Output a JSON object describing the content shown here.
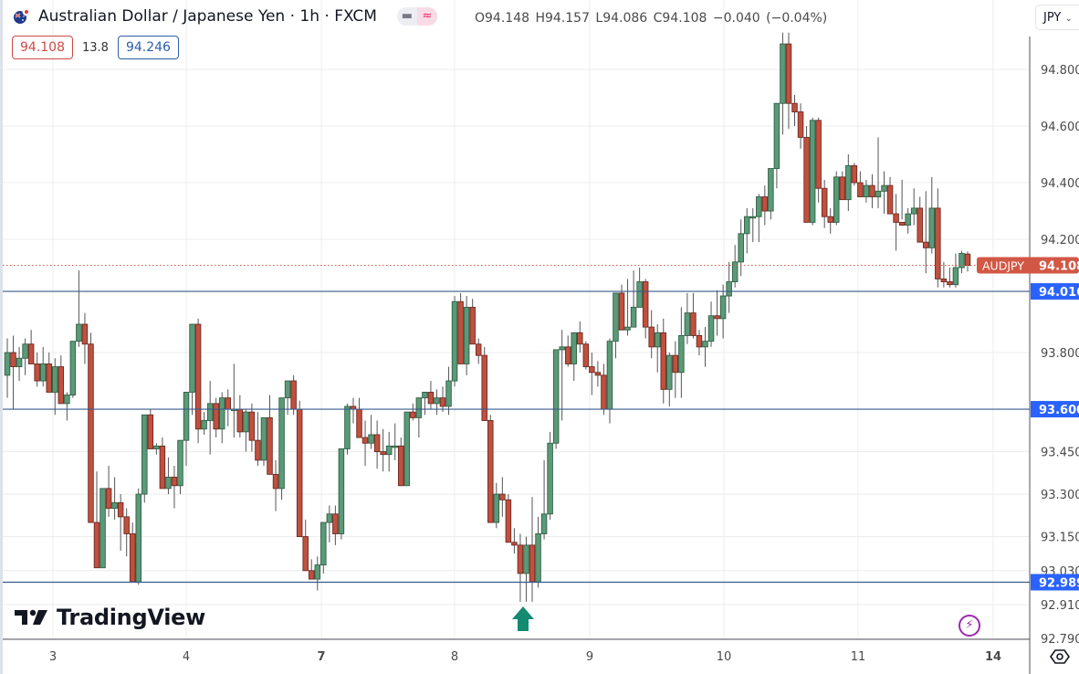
{
  "header": {
    "title": "Australian Dollar / Japanese Yen · 1h · FXCM",
    "ohlc": "O94.148 H94.157 L94.086 C94.108 −0.040 (−0.04%)",
    "sell_price": "94.108",
    "spread": "13.8",
    "buy_price": "94.246",
    "currency_selector": "JPY"
  },
  "watermark": "TradingView",
  "colors": {
    "up": "#5b9a78",
    "up_border": "#2f5f44",
    "down": "#c0503f",
    "down_border": "#6e2a22",
    "hline": "#3a5a8c",
    "price_tag": "#d25745",
    "level_tag": "#2962ff",
    "arrow": "#148a70",
    "grid": "#ececec"
  },
  "chart_data": {
    "type": "candlestick",
    "title": "Australian Dollar / Japanese Yen · 1h · FXCM",
    "symbol": "AUDJPY",
    "interval": "1h",
    "xlabel": "",
    "ylabel": "JPY",
    "x_tick_labels": [
      "3",
      "4",
      "7",
      "8",
      "9",
      "10",
      "11",
      "14"
    ],
    "y_tick_labels": [
      "94.800",
      "94.600",
      "94.400",
      "94.200",
      "93.800",
      "93.450",
      "93.300",
      "93.150",
      "93.030",
      "92.910",
      "92.790"
    ],
    "ylim": [
      92.76,
      94.93
    ],
    "grid": true,
    "last_price": 94.108,
    "last_price_label": "AUDJPY",
    "horizontal_levels": [
      94.016,
      93.6,
      92.989
    ],
    "annotations": [
      {
        "type": "up-arrow",
        "x_day": "8",
        "near_price": 92.91,
        "color": "#148a70"
      }
    ],
    "candles_ohlc": [
      [
        93.72,
        93.85,
        93.64,
        93.8
      ],
      [
        93.8,
        93.86,
        93.6,
        93.75
      ],
      [
        93.75,
        93.82,
        93.7,
        93.78
      ],
      [
        93.78,
        93.85,
        93.72,
        93.83
      ],
      [
        93.83,
        93.88,
        93.76,
        93.76
      ],
      [
        93.76,
        93.8,
        93.68,
        93.7
      ],
      [
        93.7,
        93.82,
        93.68,
        93.76
      ],
      [
        93.76,
        93.8,
        93.66,
        93.66
      ],
      [
        93.66,
        93.78,
        93.58,
        93.75
      ],
      [
        93.75,
        93.79,
        93.62,
        93.62
      ],
      [
        93.62,
        93.66,
        93.56,
        93.65
      ],
      [
        93.65,
        93.8,
        93.64,
        93.84
      ],
      [
        93.84,
        94.09,
        93.82,
        93.9
      ],
      [
        93.9,
        93.94,
        93.76,
        93.83
      ],
      [
        93.83,
        93.87,
        93.2,
        93.2
      ],
      [
        93.2,
        93.38,
        93.04,
        93.04
      ],
      [
        93.04,
        93.32,
        93.04,
        93.32
      ],
      [
        93.32,
        93.4,
        93.22,
        93.25
      ],
      [
        93.25,
        93.36,
        93.21,
        93.27
      ],
      [
        93.27,
        93.3,
        93.1,
        93.22
      ],
      [
        93.22,
        93.25,
        93.08,
        93.16
      ],
      [
        93.16,
        93.2,
        92.99,
        92.99
      ],
      [
        92.99,
        93.32,
        92.98,
        93.3
      ],
      [
        93.3,
        93.55,
        93.27,
        93.58
      ],
      [
        93.58,
        93.6,
        93.46,
        93.46
      ],
      [
        93.46,
        93.48,
        93.44,
        93.47
      ],
      [
        93.47,
        93.5,
        93.32,
        93.32
      ],
      [
        93.32,
        93.43,
        93.3,
        93.36
      ],
      [
        93.36,
        93.4,
        93.25,
        93.33
      ],
      [
        93.33,
        93.48,
        93.3,
        93.49
      ],
      [
        93.49,
        93.63,
        93.4,
        93.66
      ],
      [
        93.66,
        93.88,
        93.58,
        93.9
      ],
      [
        93.9,
        93.92,
        93.48,
        93.53
      ],
      [
        93.53,
        93.59,
        93.51,
        93.56
      ],
      [
        93.56,
        93.7,
        93.44,
        93.62
      ],
      [
        93.62,
        93.64,
        93.5,
        93.53
      ],
      [
        93.53,
        93.66,
        93.48,
        93.64
      ],
      [
        93.64,
        93.67,
        93.54,
        93.6
      ],
      [
        93.6,
        93.76,
        93.5,
        93.6
      ],
      [
        93.6,
        93.65,
        93.5,
        93.52
      ],
      [
        93.52,
        93.6,
        93.45,
        93.59
      ],
      [
        93.59,
        93.62,
        93.45,
        93.49
      ],
      [
        93.49,
        93.59,
        93.4,
        93.42
      ],
      [
        93.42,
        93.57,
        93.4,
        93.57
      ],
      [
        93.57,
        93.65,
        93.38,
        93.37
      ],
      [
        93.37,
        93.42,
        93.24,
        93.32
      ],
      [
        93.32,
        93.59,
        93.28,
        93.64
      ],
      [
        93.64,
        93.7,
        93.58,
        93.7
      ],
      [
        93.7,
        93.72,
        93.58,
        93.6
      ],
      [
        93.6,
        93.63,
        93.15,
        93.15
      ],
      [
        93.15,
        93.21,
        93.03,
        93.03
      ],
      [
        93.03,
        93.07,
        93.03,
        93.0
      ],
      [
        93.0,
        93.08,
        92.96,
        93.05
      ],
      [
        93.05,
        93.18,
        93.02,
        93.2
      ],
      [
        93.2,
        93.26,
        93.13,
        93.23
      ],
      [
        93.23,
        93.26,
        93.12,
        93.16
      ],
      [
        93.16,
        93.45,
        93.14,
        93.46
      ],
      [
        93.46,
        93.62,
        93.44,
        93.61
      ],
      [
        93.61,
        93.64,
        93.55,
        93.6
      ],
      [
        93.6,
        93.64,
        93.5,
        93.5
      ],
      [
        93.5,
        93.56,
        93.4,
        93.48
      ],
      [
        93.48,
        93.58,
        93.46,
        93.51
      ],
      [
        93.51,
        93.56,
        93.39,
        93.45
      ],
      [
        93.45,
        93.53,
        93.38,
        93.44
      ],
      [
        93.44,
        93.52,
        93.38,
        93.47
      ],
      [
        93.47,
        93.55,
        93.42,
        93.47
      ],
      [
        93.47,
        93.5,
        93.33,
        93.33
      ],
      [
        93.33,
        93.59,
        93.33,
        93.59
      ],
      [
        93.59,
        93.62,
        93.56,
        93.57
      ],
      [
        93.57,
        93.62,
        93.5,
        93.64
      ],
      [
        93.64,
        93.66,
        93.58,
        93.66
      ],
      [
        93.66,
        93.7,
        93.6,
        93.62
      ],
      [
        93.62,
        93.67,
        93.58,
        93.64
      ],
      [
        93.64,
        93.68,
        93.59,
        93.61
      ],
      [
        93.61,
        93.75,
        93.58,
        93.7
      ],
      [
        93.7,
        94.0,
        93.68,
        93.98
      ],
      [
        93.98,
        94.01,
        93.76,
        93.76
      ],
      [
        93.76,
        94.0,
        93.72,
        93.96
      ],
      [
        93.96,
        93.99,
        93.83,
        93.83
      ],
      [
        93.83,
        93.85,
        93.76,
        93.79
      ],
      [
        93.79,
        93.82,
        93.56,
        93.56
      ],
      [
        93.56,
        93.58,
        93.2,
        93.2
      ],
      [
        93.2,
        93.34,
        93.18,
        93.3
      ],
      [
        93.3,
        93.36,
        93.22,
        93.28
      ],
      [
        93.28,
        93.3,
        93.13,
        93.13
      ],
      [
        93.13,
        93.18,
        93.09,
        93.12
      ],
      [
        93.12,
        93.16,
        92.92,
        93.02
      ],
      [
        93.02,
        93.15,
        92.92,
        93.12
      ],
      [
        93.12,
        93.29,
        92.92,
        92.99
      ],
      [
        92.99,
        93.22,
        92.97,
        93.16
      ],
      [
        93.16,
        93.42,
        93.14,
        93.23
      ],
      [
        93.23,
        93.52,
        93.21,
        93.48
      ],
      [
        93.48,
        93.65,
        93.46,
        93.81
      ],
      [
        93.81,
        93.88,
        93.56,
        93.82
      ],
      [
        93.82,
        93.86,
        93.75,
        93.76
      ],
      [
        93.76,
        93.85,
        93.7,
        93.87
      ],
      [
        93.87,
        93.91,
        93.8,
        93.83
      ],
      [
        93.83,
        93.84,
        93.74,
        93.75
      ],
      [
        93.75,
        93.8,
        93.65,
        93.73
      ],
      [
        93.73,
        93.77,
        93.68,
        93.72
      ],
      [
        93.72,
        93.76,
        93.58,
        93.6
      ],
      [
        93.6,
        93.85,
        93.55,
        93.84
      ],
      [
        93.84,
        94.01,
        93.78,
        94.01
      ],
      [
        94.01,
        94.04,
        93.94,
        93.88
      ],
      [
        93.88,
        94.06,
        93.86,
        93.89
      ],
      [
        93.89,
        94.09,
        93.91,
        93.96
      ],
      [
        93.96,
        94.1,
        94.01,
        94.05
      ],
      [
        94.05,
        94.06,
        93.85,
        93.89
      ],
      [
        93.89,
        93.95,
        93.78,
        93.82
      ],
      [
        93.82,
        93.9,
        93.73,
        93.87
      ],
      [
        93.87,
        93.92,
        93.62,
        93.67
      ],
      [
        93.67,
        93.8,
        93.61,
        93.79
      ],
      [
        93.79,
        93.84,
        93.64,
        93.73
      ],
      [
        93.73,
        93.96,
        93.64,
        93.86
      ],
      [
        93.86,
        94.01,
        93.83,
        93.94
      ],
      [
        93.94,
        94.01,
        93.85,
        93.86
      ],
      [
        93.86,
        93.88,
        93.79,
        93.82
      ],
      [
        93.82,
        93.89,
        93.75,
        93.84
      ],
      [
        93.84,
        93.98,
        93.82,
        93.93
      ],
      [
        93.93,
        94.02,
        93.86,
        93.92
      ],
      [
        93.92,
        94.04,
        93.85,
        94.0
      ],
      [
        94.0,
        94.12,
        93.94,
        94.05
      ],
      [
        94.05,
        94.18,
        94.03,
        94.12
      ],
      [
        94.12,
        94.27,
        94.07,
        94.22
      ],
      [
        94.22,
        94.31,
        94.15,
        94.28
      ],
      [
        94.28,
        94.31,
        94.19,
        94.28
      ],
      [
        94.28,
        94.36,
        94.19,
        94.35
      ],
      [
        94.35,
        94.39,
        94.25,
        94.3
      ],
      [
        94.3,
        94.43,
        94.27,
        94.45
      ],
      [
        94.45,
        94.68,
        94.38,
        94.68
      ],
      [
        94.68,
        94.93,
        94.57,
        94.89
      ],
      [
        94.89,
        94.93,
        94.59,
        94.68
      ],
      [
        94.68,
        94.71,
        94.6,
        94.65
      ],
      [
        94.65,
        94.68,
        94.52,
        94.56
      ],
      [
        94.56,
        94.6,
        94.26,
        94.26
      ],
      [
        94.26,
        94.63,
        94.25,
        94.62
      ],
      [
        94.62,
        94.63,
        94.33,
        94.38
      ],
      [
        94.38,
        94.41,
        94.24,
        94.28
      ],
      [
        94.28,
        94.31,
        94.22,
        94.26
      ],
      [
        94.26,
        94.44,
        94.25,
        94.42
      ],
      [
        94.42,
        94.44,
        94.34,
        94.34
      ],
      [
        94.34,
        94.5,
        94.3,
        94.46
      ],
      [
        94.46,
        94.47,
        94.39,
        94.4
      ],
      [
        94.4,
        94.44,
        94.36,
        94.35
      ],
      [
        94.35,
        94.41,
        94.33,
        94.39
      ],
      [
        94.39,
        94.43,
        94.31,
        94.35
      ],
      [
        94.35,
        94.56,
        94.31,
        94.37
      ],
      [
        94.37,
        94.44,
        94.29,
        94.39
      ],
      [
        94.39,
        94.42,
        94.3,
        94.29
      ],
      [
        94.29,
        94.36,
        94.16,
        94.26
      ],
      [
        94.26,
        94.41,
        94.27,
        94.25
      ],
      [
        94.25,
        94.31,
        94.22,
        94.29
      ],
      [
        94.29,
        94.38,
        94.25,
        94.31
      ],
      [
        94.31,
        94.35,
        94.19,
        94.19
      ],
      [
        94.19,
        94.37,
        94.08,
        94.17
      ],
      [
        94.17,
        94.42,
        94.15,
        94.31
      ],
      [
        94.31,
        94.38,
        94.03,
        94.06
      ],
      [
        94.06,
        94.12,
        94.03,
        94.05
      ],
      [
        94.05,
        94.1,
        94.03,
        94.04
      ],
      [
        94.04,
        94.15,
        94.03,
        94.1
      ],
      [
        94.1,
        94.16,
        94.08,
        94.15
      ],
      [
        94.148,
        94.157,
        94.086,
        94.108
      ]
    ]
  }
}
